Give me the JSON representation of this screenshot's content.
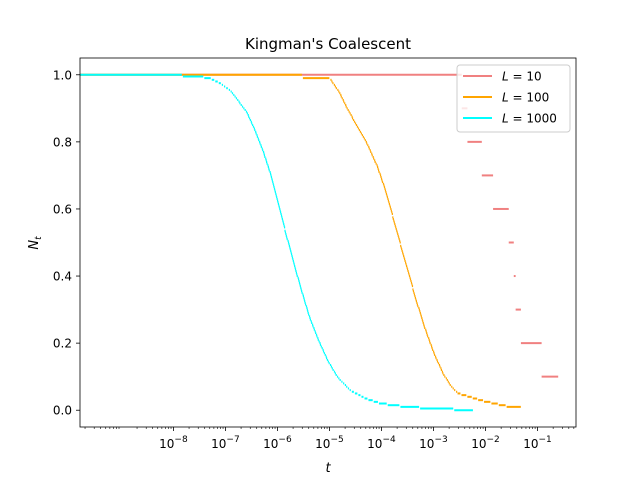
{
  "chart_data": {
    "type": "line",
    "title": "Kingman's Coalescent",
    "xlabel": "t",
    "ylabel": "N",
    "ylabel_sub": "t",
    "xscale": "log",
    "xlim": [
      1.6e-10,
      0.55
    ],
    "ylim": [
      -0.05,
      1.05
    ],
    "grid": false,
    "legend_position": "top-right",
    "x_ticks": [
      {
        "value": 1e-08,
        "base": "10",
        "exp": "−8"
      },
      {
        "value": 1e-07,
        "base": "10",
        "exp": "−7"
      },
      {
        "value": 1e-06,
        "base": "10",
        "exp": "−6"
      },
      {
        "value": 1e-05,
        "base": "10",
        "exp": "−5"
      },
      {
        "value": 0.0001,
        "base": "10",
        "exp": "−4"
      },
      {
        "value": 0.001,
        "base": "10",
        "exp": "−3"
      },
      {
        "value": 0.01,
        "base": "10",
        "exp": "−2"
      },
      {
        "value": 0.1,
        "base": "10",
        "exp": "−1"
      }
    ],
    "y_ticks": [
      {
        "value": 0.0,
        "label": "0.0"
      },
      {
        "value": 0.2,
        "label": "0.2"
      },
      {
        "value": 0.4,
        "label": "0.4"
      },
      {
        "value": 0.6,
        "label": "0.6"
      },
      {
        "value": 0.8,
        "label": "0.8"
      },
      {
        "value": 1.0,
        "label": "1.0"
      }
    ],
    "series": [
      {
        "name": "L = 10",
        "legend_var": "L",
        "legend_value": "10",
        "color": "#f08080",
        "steps": [
          {
            "t0": 1.6e-10,
            "t1": 0.0035,
            "n": 1.0
          },
          {
            "t0": 0.0035,
            "t1": 0.0045,
            "n": 0.9
          },
          {
            "t0": 0.0045,
            "t1": 0.0085,
            "n": 0.8
          },
          {
            "t0": 0.0085,
            "t1": 0.014,
            "n": 0.7
          },
          {
            "t0": 0.014,
            "t1": 0.028,
            "n": 0.6
          },
          {
            "t0": 0.028,
            "t1": 0.035,
            "n": 0.5
          },
          {
            "t0": 0.035,
            "t1": 0.038,
            "n": 0.4
          },
          {
            "t0": 0.038,
            "t1": 0.048,
            "n": 0.3
          },
          {
            "t0": 0.048,
            "t1": 0.12,
            "n": 0.2
          },
          {
            "t0": 0.12,
            "t1": 0.25,
            "n": 0.1
          }
        ]
      },
      {
        "name": "L = 100",
        "legend_var": "L",
        "legend_value": "100",
        "color": "#ffa500",
        "curve": {
          "t_start": 1.6e-10,
          "t_end": 0.05,
          "points": [
            [
              1.6e-10,
              1.0
            ],
            [
              3e-06,
              1.0
            ],
            [
              3.1e-06,
              0.99
            ],
            [
              1e-05,
              0.99
            ],
            [
              1.1e-05,
              0.98
            ],
            [
              1.5e-05,
              0.95
            ],
            [
              2e-05,
              0.91
            ],
            [
              3e-05,
              0.86
            ],
            [
              5e-05,
              0.8
            ],
            [
              8e-05,
              0.73
            ],
            [
              0.00012,
              0.65
            ],
            [
              0.00018,
              0.55
            ],
            [
              0.00025,
              0.47
            ],
            [
              0.00035,
              0.39
            ],
            [
              0.00045,
              0.33
            ],
            [
              0.00065,
              0.25
            ],
            [
              0.001,
              0.17
            ],
            [
              0.0015,
              0.11
            ],
            [
              0.0022,
              0.07
            ],
            [
              0.003,
              0.05
            ],
            [
              0.005,
              0.04
            ],
            [
              0.008,
              0.03
            ],
            [
              0.015,
              0.02
            ],
            [
              0.03,
              0.01
            ],
            [
              0.05,
              0.01
            ]
          ]
        }
      },
      {
        "name": "L = 1000",
        "legend_var": "L",
        "legend_value": "1000",
        "color": "#00ffff",
        "curve": {
          "t_start": 1.6e-10,
          "t_end": 0.006,
          "points": [
            [
              1.6e-10,
              1.0
            ],
            [
              1e-08,
              0.999
            ],
            [
              3e-08,
              0.995
            ],
            [
              5e-08,
              0.99
            ],
            [
              8e-08,
              0.975
            ],
            [
              1.2e-07,
              0.955
            ],
            [
              1.8e-07,
              0.92
            ],
            [
              2.5e-07,
              0.89
            ],
            [
              3.5e-07,
              0.84
            ],
            [
              5e-07,
              0.78
            ],
            [
              7e-07,
              0.71
            ],
            [
              1e-06,
              0.62
            ],
            [
              1.4e-06,
              0.53
            ],
            [
              2e-06,
              0.44
            ],
            [
              2.8e-06,
              0.36
            ],
            [
              4e-06,
              0.28
            ],
            [
              6e-06,
              0.21
            ],
            [
              9e-06,
              0.15
            ],
            [
              1.4e-05,
              0.1
            ],
            [
              2.5e-05,
              0.06
            ],
            [
              5e-05,
              0.035
            ],
            [
              0.0001,
              0.02
            ],
            [
              0.0003,
              0.01
            ],
            [
              0.001,
              0.005
            ],
            [
              0.003,
              0.002
            ],
            [
              0.006,
              0.001
            ]
          ]
        }
      }
    ]
  }
}
